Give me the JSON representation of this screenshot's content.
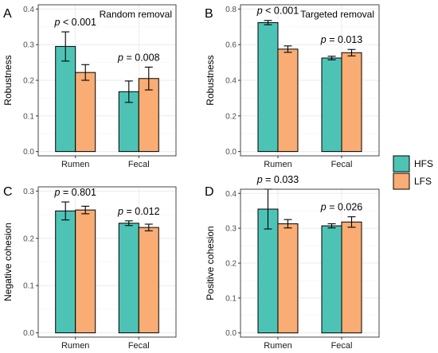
{
  "colors": {
    "HFS": "#4dc3b6",
    "LFS": "#f9ac73"
  },
  "legend": [
    {
      "key": "HFS",
      "label": "HFS"
    },
    {
      "key": "LFS",
      "label": "LFS"
    }
  ],
  "chart_data": [
    {
      "type": "bar",
      "panel": "A",
      "annotation": "Random removal",
      "ylabel": "Robustness",
      "categories": [
        "Rumen",
        "Fecal"
      ],
      "ylim": [
        0,
        0.4
      ],
      "yticks": [
        "0.0",
        "0.1",
        "0.2",
        "0.3",
        "0.4"
      ],
      "series": [
        {
          "name": "HFS",
          "values": [
            0.295,
            0.168
          ],
          "errors": [
            0.041,
            0.03
          ]
        },
        {
          "name": "LFS",
          "values": [
            0.222,
            0.205
          ],
          "errors": [
            0.022,
            0.032
          ]
        }
      ],
      "pvalues": [
        "p < 0.001",
        "p = 0.008"
      ],
      "grid": true,
      "legend": "right"
    },
    {
      "type": "bar",
      "panel": "B",
      "annotation": "Targeted removal",
      "ylabel": "Robustness",
      "categories": [
        "Rumen",
        "Fecal"
      ],
      "ylim": [
        0,
        0.8
      ],
      "yticks": [
        "0.0",
        "0.2",
        "0.4",
        "0.6",
        "0.8"
      ],
      "series": [
        {
          "name": "HFS",
          "values": [
            0.724,
            0.525
          ],
          "errors": [
            0.012,
            0.01
          ]
        },
        {
          "name": "LFS",
          "values": [
            0.575,
            0.555
          ],
          "errors": [
            0.018,
            0.018
          ]
        }
      ],
      "pvalues": [
        "p < 0.001",
        "p = 0.013"
      ],
      "grid": true,
      "legend": "right"
    },
    {
      "type": "bar",
      "panel": "C",
      "annotation": "",
      "ylabel": "Negative cohesion",
      "categories": [
        "Rumen",
        "Fecal"
      ],
      "ylim": [
        0,
        0.3
      ],
      "yticks": [
        "0.0",
        "0.1",
        "0.2",
        "0.3"
      ],
      "series": [
        {
          "name": "HFS",
          "values": [
            0.258,
            0.232
          ],
          "errors": [
            0.019,
            0.005
          ]
        },
        {
          "name": "LFS",
          "values": [
            0.26,
            0.223
          ],
          "errors": [
            0.008,
            0.007
          ]
        }
      ],
      "pvalues": [
        "p = 0.801",
        "p = 0.012"
      ],
      "grid": true,
      "legend": "right"
    },
    {
      "type": "bar",
      "panel": "D",
      "annotation": "",
      "ylabel": "Positive cohesion",
      "categories": [
        "Rumen",
        "Fecal"
      ],
      "ylim": [
        0,
        0.4
      ],
      "yticks": [
        "0.0",
        "0.1",
        "0.2",
        "0.3",
        "0.4"
      ],
      "series": [
        {
          "name": "HFS",
          "values": [
            0.355,
            0.307
          ],
          "errors": [
            0.057,
            0.006
          ]
        },
        {
          "name": "LFS",
          "values": [
            0.313,
            0.318
          ],
          "errors": [
            0.012,
            0.015
          ]
        }
      ],
      "pvalues": [
        "p = 0.033",
        "p = 0.026"
      ],
      "grid": true,
      "legend": "right"
    }
  ]
}
